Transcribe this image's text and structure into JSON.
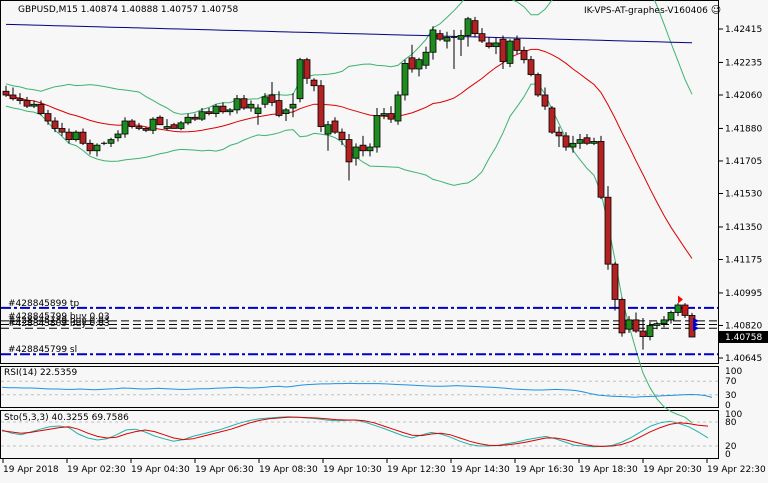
{
  "header": {
    "symbol_info": "GBPUSD,M15  1.40874 1.40888 1.40757 1.40758",
    "expert_name": "IK-VPS-AT-graphes-V160406",
    "expert_icon": "smiley-icon"
  },
  "price_axis": {
    "labels": [
      "1.42415",
      "1.42235",
      "1.42060",
      "1.41880",
      "1.41705",
      "1.41530",
      "1.41350",
      "1.41175",
      "1.40995",
      "1.40820",
      "1.40645"
    ],
    "current_price": "1.40758"
  },
  "orders": [
    {
      "label": "#428845899 tp",
      "price": 1.40915,
      "style": "dashdot",
      "color": "#0000cc"
    },
    {
      "label": "#428845799 buy 0.03",
      "price": 1.40845,
      "style": "dash",
      "color": "#000000"
    },
    {
      "label": "#428845789 buy 0.03",
      "price": 1.40825,
      "style": "dash",
      "color": "#000000"
    },
    {
      "label": "#428845809 buy 0.03",
      "price": 1.40805,
      "style": "dash",
      "color": "#000000"
    },
    {
      "label": "#428845799 sl",
      "price": 1.40665,
      "style": "dashdot",
      "color": "#0000cc"
    }
  ],
  "rsi": {
    "label": "RSI(14) 22.5359",
    "axis_labels": [
      "100",
      "70",
      "30",
      "0"
    ],
    "levels": [
      70,
      30
    ],
    "color": "#1e90e0"
  },
  "stoch": {
    "label": "Sto(5,3,3) 40.3255 69.7586",
    "axis_labels": [
      "100",
      "80",
      "20",
      "0"
    ],
    "levels": [
      80,
      20
    ],
    "main_color": "#20b2aa",
    "signal_color": "#dd0000"
  },
  "time_axis": {
    "labels": [
      "19 Apr 2018",
      "19 Apr 02:30",
      "19 Apr 04:30",
      "19 Apr 06:30",
      "19 Apr 08:30",
      "19 Apr 10:30",
      "19 Apr 12:30",
      "19 Apr 14:30",
      "19 Apr 16:30",
      "19 Apr 18:30",
      "19 Apr 20:30",
      "19 Apr 22:30"
    ]
  },
  "colors": {
    "bull": "#1f8a1f",
    "bear": "#b22222",
    "ma_fast": "#dd0000",
    "ma_slow": "#000080",
    "bands": "#3cb371",
    "grid_dash": "#c0c0c0",
    "order_blue": "#0000cc"
  },
  "chart_data": {
    "type": "candlestick",
    "title": "GBPUSD,M15",
    "ylim": [
      1.40645,
      1.4254
    ],
    "yticks": [
      1.42415,
      1.42235,
      1.4206,
      1.4188,
      1.41705,
      1.4153,
      1.4135,
      1.41175,
      1.40995,
      1.4082,
      1.40645
    ],
    "x_tick_labels": [
      "19 Apr 2018",
      "19 Apr 02:30",
      "19 Apr 04:30",
      "19 Apr 06:30",
      "19 Apr 08:30",
      "19 Apr 10:30",
      "19 Apr 12:30",
      "19 Apr 14:30",
      "19 Apr 16:30",
      "19 Apr 18:30",
      "19 Apr 20:30",
      "19 Apr 22:30"
    ],
    "last": {
      "open": 1.40874,
      "high": 1.40888,
      "low": 1.40757,
      "close": 1.40758
    },
    "candles": [
      [
        1.4208,
        1.4211,
        1.4205,
        1.4206
      ],
      [
        1.4206,
        1.421,
        1.4203,
        1.4204
      ],
      [
        1.4204,
        1.4207,
        1.4201,
        1.4203
      ],
      [
        1.4203,
        1.4205,
        1.4199,
        1.42
      ],
      [
        1.42,
        1.4203,
        1.4199,
        1.4201
      ],
      [
        1.4201,
        1.4203,
        1.4195,
        1.4196
      ],
      [
        1.4196,
        1.4198,
        1.419,
        1.4192
      ],
      [
        1.4192,
        1.4194,
        1.4186,
        1.4188
      ],
      [
        1.4188,
        1.4191,
        1.4184,
        1.4186
      ],
      [
        1.4186,
        1.4188,
        1.418,
        1.4182
      ],
      [
        1.4182,
        1.4187,
        1.4181,
        1.4186
      ],
      [
        1.4186,
        1.4188,
        1.4179,
        1.418
      ],
      [
        1.418,
        1.4182,
        1.4174,
        1.4176
      ],
      [
        1.4176,
        1.418,
        1.4173,
        1.4179
      ],
      [
        1.418,
        1.4181,
        1.4179,
        1.418
      ],
      [
        1.418,
        1.4183,
        1.4178,
        1.4182
      ],
      [
        1.4183,
        1.4187,
        1.4181,
        1.4185
      ],
      [
        1.4185,
        1.4194,
        1.4183,
        1.4192
      ],
      [
        1.4192,
        1.4193,
        1.4188,
        1.4189
      ],
      [
        1.4189,
        1.4191,
        1.4187,
        1.4188
      ],
      [
        1.4188,
        1.4189,
        1.4186,
        1.4187
      ],
      [
        1.4187,
        1.4194,
        1.4185,
        1.4193
      ],
      [
        1.4194,
        1.4195,
        1.419,
        1.419
      ],
      [
        1.4188,
        1.4193,
        1.4187,
        1.4189
      ],
      [
        1.419,
        1.4191,
        1.4188,
        1.4188
      ],
      [
        1.4188,
        1.4192,
        1.4187,
        1.4191
      ],
      [
        1.4191,
        1.4196,
        1.419,
        1.4194
      ],
      [
        1.4194,
        1.4196,
        1.4192,
        1.4193
      ],
      [
        1.4193,
        1.4199,
        1.4192,
        1.4197
      ],
      [
        1.4197,
        1.4199,
        1.4195,
        1.4196
      ],
      [
        1.4196,
        1.4201,
        1.4194,
        1.42
      ],
      [
        1.42,
        1.4202,
        1.4196,
        1.4197
      ],
      [
        1.4197,
        1.4199,
        1.4195,
        1.4198
      ],
      [
        1.4198,
        1.4206,
        1.4196,
        1.4204
      ],
      [
        1.4204,
        1.4206,
        1.4198,
        1.4199
      ],
      [
        1.4199,
        1.4203,
        1.4197,
        1.4201
      ],
      [
        1.4196,
        1.4201,
        1.419,
        1.4199
      ],
      [
        1.4201,
        1.4207,
        1.4199,
        1.4205
      ],
      [
        1.4206,
        1.4213,
        1.42,
        1.4202
      ],
      [
        1.4203,
        1.4208,
        1.4194,
        1.4195
      ],
      [
        1.4196,
        1.4199,
        1.4192,
        1.4198
      ],
      [
        1.4199,
        1.4207,
        1.4194,
        1.4201
      ],
      [
        1.4204,
        1.4226,
        1.4202,
        1.4225
      ],
      [
        1.4225,
        1.4226,
        1.4212,
        1.4215
      ],
      [
        1.4214,
        1.4215,
        1.4208,
        1.4211
      ],
      [
        1.4211,
        1.4214,
        1.4186,
        1.4189
      ],
      [
        1.4185,
        1.4192,
        1.4176,
        1.419
      ],
      [
        1.4192,
        1.4194,
        1.4185,
        1.4186
      ],
      [
        1.4186,
        1.4188,
        1.4179,
        1.4182
      ],
      [
        1.4182,
        1.4185,
        1.416,
        1.417
      ],
      [
        1.4172,
        1.418,
        1.4168,
        1.4178
      ],
      [
        1.4179,
        1.4184,
        1.4173,
        1.4176
      ],
      [
        1.4176,
        1.418,
        1.4173,
        1.4178
      ],
      [
        1.4178,
        1.4199,
        1.4175,
        1.4195
      ],
      [
        1.4195,
        1.4199,
        1.4193,
        1.4196
      ],
      [
        1.4196,
        1.42,
        1.4191,
        1.4193
      ],
      [
        1.4192,
        1.4208,
        1.419,
        1.4206
      ],
      [
        1.4206,
        1.4225,
        1.4203,
        1.4223
      ],
      [
        1.4226,
        1.4233,
        1.4218,
        1.422
      ],
      [
        1.422,
        1.4226,
        1.4216,
        1.4225
      ],
      [
        1.4222,
        1.4232,
        1.422,
        1.4229
      ],
      [
        1.4229,
        1.4243,
        1.4225,
        1.4241
      ],
      [
        1.4239,
        1.4241,
        1.4235,
        1.4236
      ],
      [
        1.4235,
        1.424,
        1.4231,
        1.4237
      ],
      [
        1.4237,
        1.4241,
        1.422,
        1.4237
      ],
      [
        1.4236,
        1.4241,
        1.4227,
        1.4238
      ],
      [
        1.4238,
        1.4248,
        1.4232,
        1.4247
      ],
      [
        1.4246,
        1.4248,
        1.4237,
        1.4239
      ],
      [
        1.4239,
        1.4242,
        1.4234,
        1.4235
      ],
      [
        1.4234,
        1.4237,
        1.4231,
        1.4232
      ],
      [
        1.4232,
        1.4237,
        1.4228,
        1.4234
      ],
      [
        1.4236,
        1.4238,
        1.422,
        1.4224
      ],
      [
        1.4223,
        1.4236,
        1.4221,
        1.4235
      ],
      [
        1.4236,
        1.4238,
        1.4228,
        1.423
      ],
      [
        1.423,
        1.4232,
        1.4223,
        1.4225
      ],
      [
        1.4225,
        1.4227,
        1.4216,
        1.4217
      ],
      [
        1.4217,
        1.4218,
        1.4205,
        1.4206
      ],
      [
        1.4206,
        1.421,
        1.4198,
        1.42
      ],
      [
        1.4199,
        1.42,
        1.4185,
        1.4186
      ],
      [
        1.4186,
        1.4189,
        1.4178,
        1.4184
      ],
      [
        1.4184,
        1.4186,
        1.4176,
        1.4178
      ],
      [
        1.4178,
        1.4184,
        1.4175,
        1.418
      ],
      [
        1.418,
        1.4185,
        1.4177,
        1.4182
      ],
      [
        1.4183,
        1.4185,
        1.4179,
        1.418
      ],
      [
        1.418,
        1.4183,
        1.4179,
        1.4181
      ],
      [
        1.4181,
        1.4184,
        1.415,
        1.4151
      ],
      [
        1.4151,
        1.4157,
        1.4112,
        1.4115
      ],
      [
        1.4115,
        1.4116,
        1.409,
        1.4096
      ],
      [
        1.4096,
        1.4097,
        1.4076,
        1.4078
      ],
      [
        1.408,
        1.4087,
        1.4078,
        1.4085
      ],
      [
        1.4085,
        1.4089,
        1.4078,
        1.4079
      ],
      [
        1.4079,
        1.4086,
        1.4069,
        1.4076
      ],
      [
        1.4076,
        1.4084,
        1.4074,
        1.4082
      ],
      [
        1.4082,
        1.4084,
        1.408,
        1.4083
      ],
      [
        1.4083,
        1.4087,
        1.4081,
        1.4085
      ],
      [
        1.4085,
        1.409,
        1.4083,
        1.4089
      ],
      [
        1.4089,
        1.4094,
        1.4087,
        1.4093
      ],
      [
        1.4093,
        1.4094,
        1.4086,
        1.40874
      ],
      [
        1.40874,
        1.40888,
        1.40757,
        1.40758
      ]
    ],
    "rsi_values": [
      52,
      51,
      51,
      50,
      50,
      49,
      48,
      47,
      47,
      46,
      46,
      47,
      46,
      45,
      46,
      47,
      48,
      50,
      49,
      48,
      47,
      48,
      49,
      48,
      47,
      46,
      46,
      47,
      48,
      48,
      49,
      50,
      51,
      52,
      51,
      50,
      51,
      52,
      54,
      55,
      53,
      55,
      58,
      60,
      61,
      62,
      62,
      63,
      63,
      64,
      63,
      63,
      63,
      63,
      62,
      61,
      60,
      59,
      58,
      57,
      56,
      55,
      55,
      56,
      57,
      56,
      55,
      54,
      53,
      52,
      51,
      49,
      47,
      46,
      45,
      44,
      44,
      45,
      46,
      45,
      44,
      42,
      38,
      33,
      29,
      27,
      26,
      25,
      24,
      23,
      24,
      25,
      26,
      27,
      28,
      29,
      30,
      31,
      30,
      28,
      22.5
    ],
    "stoch_main": [
      60,
      52,
      48,
      55,
      62,
      68,
      70,
      66,
      50,
      40,
      35,
      38,
      48,
      60,
      62,
      55,
      45,
      38,
      32,
      36,
      44,
      50,
      56,
      62,
      70,
      78,
      84,
      88,
      90,
      92,
      93,
      92,
      90,
      88,
      85,
      83,
      84,
      85,
      80,
      72,
      64,
      55,
      46,
      40,
      48,
      54,
      50,
      42,
      32,
      24,
      20,
      20,
      22,
      26,
      30,
      36,
      40,
      44,
      38,
      30,
      22,
      20,
      18,
      19,
      22,
      30,
      42,
      56,
      70,
      78,
      82,
      76,
      68,
      55,
      40.3
    ],
    "stoch_signal": [
      58,
      55,
      52,
      54,
      58,
      62,
      66,
      68,
      62,
      52,
      44,
      40,
      42,
      50,
      56,
      60,
      56,
      48,
      40,
      36,
      38,
      44,
      50,
      56,
      62,
      70,
      78,
      84,
      88,
      90,
      92,
      92,
      91,
      90,
      88,
      86,
      85,
      85,
      83,
      78,
      70,
      62,
      54,
      47,
      46,
      50,
      52,
      48,
      40,
      32,
      26,
      22,
      21,
      23,
      26,
      30,
      35,
      40,
      40,
      36,
      30,
      24,
      20,
      19,
      20,
      24,
      32,
      44,
      56,
      66,
      74,
      78,
      76,
      72,
      69.8
    ]
  }
}
